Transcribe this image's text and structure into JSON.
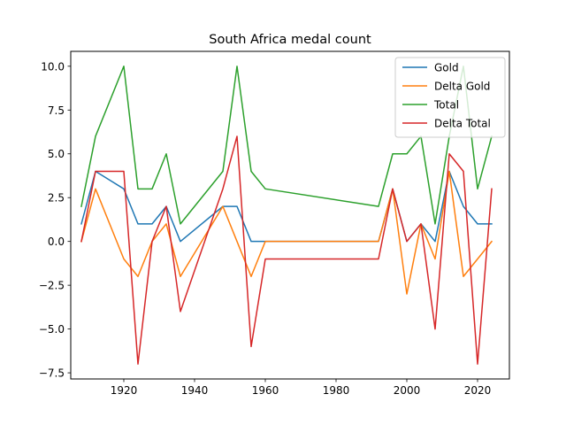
{
  "chart_data": {
    "type": "line",
    "title": "South Africa medal count",
    "xlabel": "",
    "ylabel": "",
    "xlim": [
      1905,
      2029
    ],
    "ylim": [
      -7.85,
      10.85
    ],
    "x_ticks": [
      1920,
      1940,
      1960,
      1980,
      2000,
      2020
    ],
    "y_ticks": [
      -7.5,
      -5.0,
      -2.5,
      0.0,
      2.5,
      5.0,
      7.5,
      10.0
    ],
    "x_tick_labels": [
      "1920",
      "1940",
      "1960",
      "1980",
      "2000",
      "2020"
    ],
    "y_tick_labels": [
      "−7.5",
      "−5.0",
      "−2.5",
      "0.0",
      "2.5",
      "5.0",
      "7.5",
      "10.0"
    ],
    "grid": false,
    "legend_position": "top-right",
    "x": [
      1908,
      1912,
      1920,
      1924,
      1928,
      1932,
      1936,
      1948,
      1952,
      1956,
      1960,
      1992,
      1996,
      2000,
      2004,
      2008,
      2012,
      2016,
      2020,
      2024
    ],
    "series": [
      {
        "name": "Gold",
        "color": "#1f77b4",
        "values": [
          1,
          4,
          3,
          1,
          1,
          2,
          0,
          2,
          2,
          0,
          0,
          0,
          3,
          0,
          1,
          0,
          4,
          2,
          1,
          1
        ]
      },
      {
        "name": "Delta Gold",
        "color": "#ff7f0e",
        "values": [
          0,
          3,
          -1,
          -2,
          0,
          1,
          -2,
          2,
          0,
          -2,
          0,
          0,
          3,
          -3,
          1,
          -1,
          4,
          -2,
          -1,
          0
        ]
      },
      {
        "name": "Total",
        "color": "#2ca02c",
        "values": [
          2,
          6,
          10,
          3,
          3,
          5,
          1,
          4,
          10,
          4,
          3,
          2,
          5,
          5,
          6,
          1,
          6,
          10,
          3,
          6
        ]
      },
      {
        "name": "Delta Total",
        "color": "#d62728",
        "values": [
          0,
          4,
          4,
          -7,
          0,
          2,
          -4,
          3,
          6,
          -6,
          -1,
          -1,
          3,
          0,
          1,
          -5,
          5,
          4,
          -7,
          3
        ]
      }
    ]
  }
}
